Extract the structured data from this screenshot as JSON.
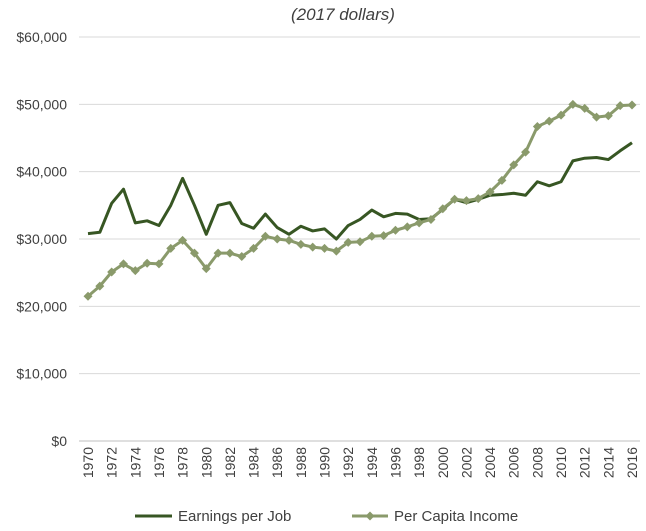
{
  "chart_data": {
    "type": "line",
    "subtitle": "(2017 dollars)",
    "title": "",
    "xlabel": "",
    "ylabel": "",
    "x": [
      1970,
      1971,
      1972,
      1973,
      1974,
      1975,
      1976,
      1977,
      1978,
      1979,
      1980,
      1981,
      1982,
      1983,
      1984,
      1985,
      1986,
      1987,
      1988,
      1989,
      1990,
      1991,
      1992,
      1993,
      1994,
      1995,
      1996,
      1997,
      1998,
      1999,
      2000,
      2001,
      2002,
      2003,
      2004,
      2005,
      2006,
      2007,
      2008,
      2009,
      2010,
      2011,
      2012,
      2013,
      2014,
      2015,
      2016
    ],
    "x_tick_labels": [
      "1970",
      "1972",
      "1974",
      "1976",
      "1978",
      "1980",
      "1982",
      "1984",
      "1986",
      "1988",
      "1990",
      "1992",
      "1994",
      "1996",
      "1998",
      "2000",
      "2002",
      "2004",
      "2006",
      "2008",
      "2010",
      "2012",
      "2014",
      "2016"
    ],
    "ylim": [
      0,
      60000
    ],
    "y_ticks": [
      0,
      10000,
      20000,
      30000,
      40000,
      50000,
      60000
    ],
    "y_tick_labels": [
      "$0",
      "$10,000",
      "$20,000",
      "$30,000",
      "$40,000",
      "$50,000",
      "$60,000"
    ],
    "grid": "horizontal",
    "legend_position": "bottom",
    "series": [
      {
        "name": "Earnings per Job",
        "color": "#375623",
        "marker": "none",
        "values": [
          30800,
          31000,
          35300,
          37400,
          32400,
          32700,
          32000,
          35000,
          39000,
          35000,
          30700,
          35000,
          35400,
          32300,
          31600,
          33700,
          31700,
          30700,
          31900,
          31200,
          31500,
          30000,
          32000,
          32900,
          34300,
          33300,
          33800,
          33700,
          32900,
          33000,
          34400,
          35900,
          35400,
          35900,
          36500,
          36600,
          36800,
          36500,
          38500,
          37900,
          38500,
          41600,
          42000,
          42100,
          41800,
          43100,
          44300
        ]
      },
      {
        "name": "Per Capita Income",
        "color": "#8a9a6b",
        "marker": "diamond",
        "values": [
          21500,
          23000,
          25100,
          26300,
          25300,
          26400,
          26300,
          28600,
          29800,
          27900,
          25600,
          27900,
          27900,
          27400,
          28600,
          30400,
          30000,
          29800,
          29200,
          28800,
          28600,
          28200,
          29500,
          29600,
          30400,
          30500,
          31300,
          31800,
          32400,
          32900,
          34500,
          35900,
          35700,
          36000,
          37000,
          38700,
          41000,
          42900,
          46700,
          47500,
          48400,
          50000,
          49400,
          48100,
          48300,
          49800,
          49900
        ]
      }
    ]
  }
}
